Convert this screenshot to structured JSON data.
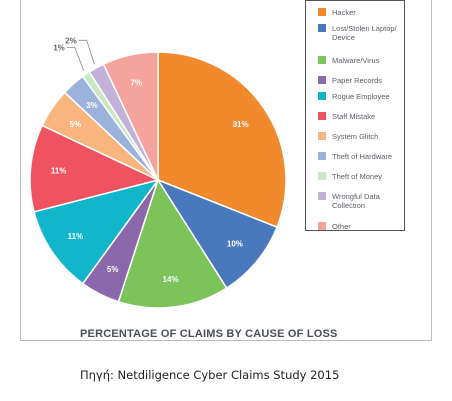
{
  "chart_data": {
    "type": "pie",
    "title": "PERCENTAGE OF CLAIMS BY CAUSE OF LOSS",
    "categories": [
      "Hacker",
      "Lost/Stolen Laptop/ Device",
      "Malware/Virus",
      "Paper Records",
      "Rogue Employee",
      "Staff Mistake",
      "System Glitch",
      "Theft of Hardware",
      "Theft of Money",
      "Wrongful Data Collection",
      "Other"
    ],
    "values": [
      31,
      10,
      14,
      5,
      11,
      11,
      5,
      3,
      1,
      2,
      7
    ],
    "labels": [
      "31%",
      "10%",
      "14%",
      "5%",
      "11%",
      "11%",
      "5%",
      "3%",
      "1%",
      "2%",
      "7%"
    ],
    "colors": [
      "#f18a2c",
      "#4a78bd",
      "#7cc35a",
      "#8a68ab",
      "#11b6cb",
      "#ef535f",
      "#f8b57e",
      "#9bb2dc",
      "#c9e7c2",
      "#c3b2d8",
      "#f5a39d"
    ],
    "legend_position": "top-right"
  },
  "source": "Πηγή: Netdiligence Cyber Claims Study 2015"
}
